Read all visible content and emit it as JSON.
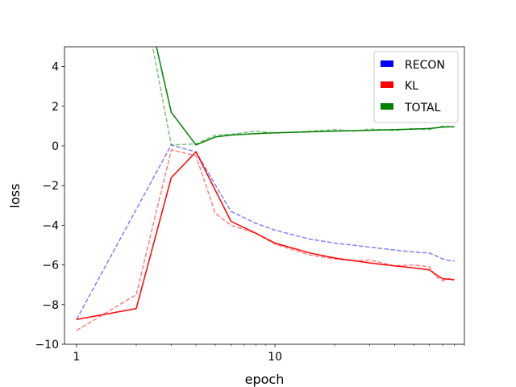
{
  "chart_data": {
    "type": "line",
    "xlabel": "epoch",
    "ylabel": "loss",
    "xscale": "log",
    "xlim": [
      0.87,
      90
    ],
    "ylim": [
      -10,
      5
    ],
    "xticks_major": [
      1,
      10
    ],
    "xtick_labels": [
      "1",
      "10"
    ],
    "yticks": [
      -10,
      -8,
      -6,
      -4,
      -2,
      0,
      2,
      4
    ],
    "ytick_labels": [
      "−10",
      "−8",
      "−6",
      "−4",
      "−2",
      "0",
      "2",
      "4"
    ],
    "grid": false,
    "legend": {
      "placement": "top-right",
      "entries": [
        "RECON",
        "KL",
        "TOTAL"
      ]
    },
    "series": [
      {
        "name": "RECON",
        "color": "#0000ff",
        "style": "dashed",
        "alpha": 0.5,
        "x": [
          1,
          2,
          3,
          4,
          6,
          8,
          10,
          15,
          20,
          30,
          40,
          50,
          60,
          65,
          70,
          75,
          80
        ],
        "y": [
          -8.75,
          -3.2,
          0.05,
          -0.3,
          -3.3,
          -3.9,
          -4.25,
          -4.7,
          -4.9,
          -5.1,
          -5.25,
          -5.35,
          -5.4,
          -5.55,
          -5.7,
          -5.78,
          -5.8
        ]
      },
      {
        "name": "KL",
        "color": "#ff0000",
        "style": "solid",
        "alpha": 1.0,
        "x": [
          1,
          2,
          3,
          4,
          6,
          8,
          10,
          15,
          20,
          30,
          40,
          50,
          60,
          65,
          70,
          75,
          80
        ],
        "y": [
          -8.75,
          -8.2,
          -1.6,
          -0.3,
          -3.8,
          -4.4,
          -4.9,
          -5.4,
          -5.65,
          -5.9,
          -6.05,
          -6.15,
          -6.25,
          -6.5,
          -6.7,
          -6.72,
          -6.75
        ]
      },
      {
        "name": "KL (dashed)",
        "color": "#ff0000",
        "style": "dashed",
        "alpha": 0.5,
        "x": [
          1,
          2,
          3,
          4,
          5,
          6,
          8,
          10,
          15,
          20,
          25,
          30,
          40,
          50,
          60,
          65,
          70,
          75,
          80
        ],
        "y": [
          -9.3,
          -7.5,
          -0.2,
          -0.5,
          -3.4,
          -4.0,
          -4.4,
          -4.95,
          -5.5,
          -5.7,
          -5.8,
          -5.75,
          -6.05,
          -6.0,
          -6.1,
          -6.6,
          -6.8,
          -6.7,
          -6.72
        ]
      },
      {
        "name": "TOTAL",
        "color": "#008000",
        "style": "solid",
        "alpha": 1.0,
        "x": [
          2.5,
          3,
          4,
          5,
          6,
          8,
          10,
          15,
          20,
          30,
          40,
          50,
          60,
          70,
          80
        ],
        "y": [
          5.2,
          1.7,
          0.05,
          0.45,
          0.55,
          0.62,
          0.66,
          0.71,
          0.75,
          0.79,
          0.82,
          0.85,
          0.88,
          0.95,
          0.97
        ]
      },
      {
        "name": "TOTAL (dashed)",
        "color": "#008000",
        "style": "dashed",
        "alpha": 0.5,
        "x": [
          2.4,
          3,
          4,
          5,
          6,
          8,
          10,
          15,
          20,
          25,
          30,
          40,
          50,
          60,
          70,
          80
        ],
        "y": [
          5.2,
          0.05,
          0.1,
          0.55,
          0.58,
          0.75,
          0.65,
          0.74,
          0.82,
          0.75,
          0.85,
          0.78,
          0.88,
          0.82,
          1.0,
          0.95
        ]
      }
    ]
  }
}
